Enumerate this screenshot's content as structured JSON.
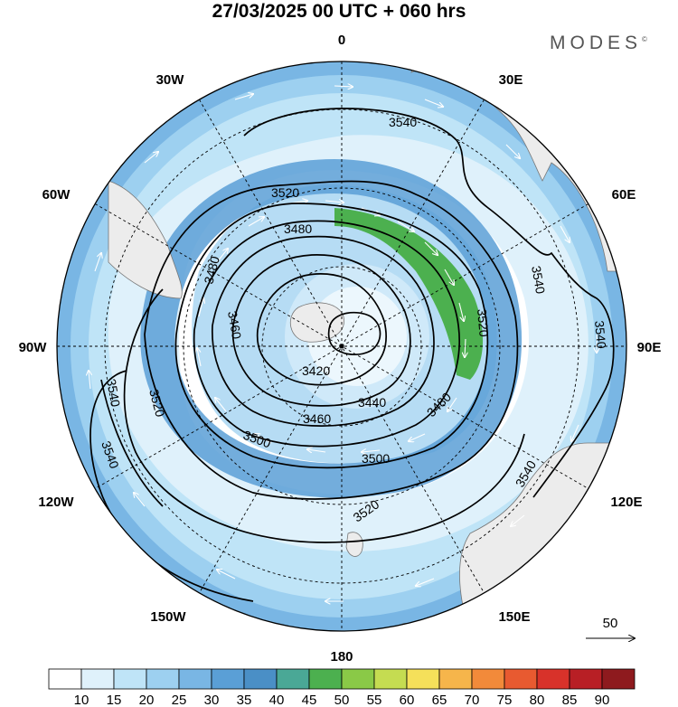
{
  "header": {
    "title": "27/03/2025  00 UTC  + 060 hrs",
    "brand": "MODES"
  },
  "map": {
    "projection": "south polar stereographic",
    "longitude_labels": {
      "lon_0": "0",
      "lon_30e": "30E",
      "lon_60e": "60E",
      "lon_90e": "90E",
      "lon_120e": "120E",
      "lon_150e": "150E",
      "lon_180": "180",
      "lon_150w": "150W",
      "lon_120w": "120W",
      "lon_90w": "90W",
      "lon_60w": "60W",
      "lon_30w": "30W"
    },
    "contour_labels": {
      "c3540_top": "3540",
      "c3540_right": "3540",
      "c3540_far_right": "3540",
      "c3540_lower_right": "3540",
      "c3540_left_a": "3540",
      "c3540_left_b": "3540",
      "c3520_top": "3520",
      "c3520_right": "3520",
      "c3520_left": "3520",
      "c3520_bottom": "3520",
      "c3500_left": "3500",
      "c3500_bottom": "3500",
      "c3480_top": "3480",
      "c3480_left": "3480",
      "c3480_bottom": "3480",
      "c3460_left": "3460",
      "c3460_bottom": "3460",
      "c3440": "3440",
      "c3420": "3420"
    },
    "reference_vector_label": "50"
  },
  "colorbar": {
    "ticks": [
      "10",
      "15",
      "20",
      "25",
      "30",
      "35",
      "40",
      "45",
      "50",
      "55",
      "60",
      "65",
      "70",
      "75",
      "80",
      "85",
      "90"
    ],
    "colors": [
      "#ffffff",
      "#dff1fb",
      "#bfe4f7",
      "#9dd0f0",
      "#79b6e4",
      "#5a9fd6",
      "#4a8fc6",
      "#4aa896",
      "#4cb04f",
      "#8ac947",
      "#c5dc51",
      "#f5e05a",
      "#f6b54b",
      "#f28a3a",
      "#e85a30",
      "#d8322a",
      "#b81f25",
      "#8e1a1e"
    ]
  }
}
